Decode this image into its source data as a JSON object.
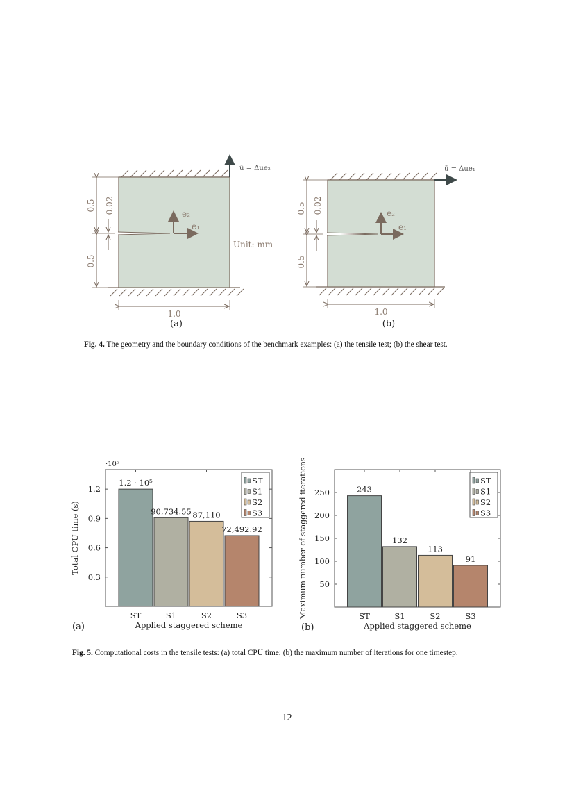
{
  "fig4": {
    "a": {
      "load_label": "ū = Δue₂",
      "unit_label": "Unit: mm",
      "dim_top": "0.5",
      "dim_bottom": "0.5",
      "dim_crack": "0.02",
      "dim_width": "1.0",
      "e1": "e₁",
      "e2": "e₂",
      "panel": "(a)"
    },
    "b": {
      "load_label": "ū = Δue₁",
      "dim_top": "0.5",
      "dim_bottom": "0.5",
      "dim_crack": "0.02",
      "dim_width": "1.0",
      "e1": "e₁",
      "e2": "e₂",
      "panel": "(b)"
    },
    "caption_label": "Fig. 4.",
    "caption_text": " The geometry and the boundary conditions of the benchmark examples: (a) the tensile test; (b) the shear test.",
    "colors": {
      "specimen_fill": "#d3ddd3",
      "line": "#7a6a5e",
      "load_arrow": "#3f4a4a"
    }
  },
  "chart_data": [
    {
      "type": "bar",
      "panel": "(a)",
      "categories": [
        "ST",
        "S1",
        "S2",
        "S3"
      ],
      "values": [
        120000,
        90734.55,
        87110,
        72492.92
      ],
      "data_labels": [
        "1.2 · 10⁵",
        "90,734.55",
        "87,110",
        "72,492.92"
      ],
      "xlabel": "Applied staggered scheme",
      "ylabel": "Total CPU time (s)",
      "y_multiplier": "·10⁵",
      "ylim": [
        0,
        1.4
      ],
      "yticks": [
        0.3,
        0.6,
        0.9,
        1.2
      ],
      "ytick_labels": [
        "0.3",
        "0.6",
        "0.9",
        "1.2"
      ],
      "scaled_values": [
        1.2,
        0.90734555,
        0.8711,
        0.7249292
      ],
      "legend": [
        "ST",
        "S1",
        "S2",
        "S3"
      ],
      "legend_position": "top-right",
      "colors": [
        "#8fa39f",
        "#b0b0a2",
        "#d4bd9a",
        "#b5856c"
      ],
      "grid": false
    },
    {
      "type": "bar",
      "panel": "(b)",
      "categories": [
        "ST",
        "S1",
        "S2",
        "S3"
      ],
      "values": [
        243,
        132,
        113,
        91
      ],
      "data_labels": [
        "243",
        "132",
        "113",
        "91"
      ],
      "xlabel": "Applied staggered scheme",
      "ylabel": "Maximum number of staggered iterations",
      "ylim": [
        0,
        300
      ],
      "yticks": [
        50,
        100,
        150,
        200,
        250
      ],
      "ytick_labels": [
        "50",
        "100",
        "150",
        "200",
        "250"
      ],
      "legend": [
        "ST",
        "S1",
        "S2",
        "S3"
      ],
      "legend_position": "top-right",
      "colors": [
        "#8fa39f",
        "#b0b0a2",
        "#d4bd9a",
        "#b5856c"
      ],
      "grid": false
    }
  ],
  "fig5": {
    "caption_label": "Fig. 5.",
    "caption_text": " Computational costs in the tensile tests: (a) total CPU time; (b) the maximum number of iterations for one timestep."
  },
  "page_number": "12"
}
